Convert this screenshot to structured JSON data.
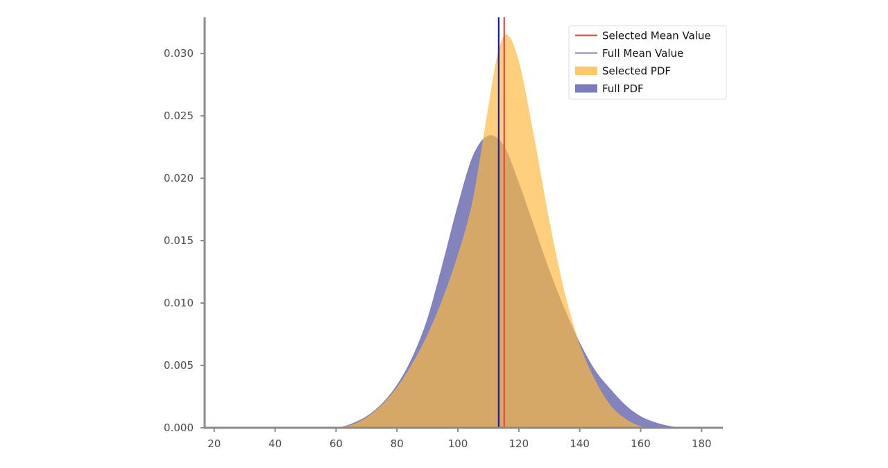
{
  "chart_data": {
    "type": "area",
    "title": "",
    "xlabel": "",
    "ylabel": "",
    "xlim": [
      18,
      187
    ],
    "ylim": [
      0,
      0.0329
    ],
    "xticks": [
      20,
      40,
      60,
      80,
      100,
      120,
      140,
      160,
      180
    ],
    "yticks": [
      0.0,
      0.005,
      0.01,
      0.015,
      0.02,
      0.025,
      0.03
    ],
    "ytick_labels": [
      "0.000",
      "0.005",
      "0.010",
      "0.015",
      "0.020",
      "0.025",
      "0.030"
    ],
    "grid": false,
    "legend_position": "top-right",
    "series": [
      {
        "name": "Full PDF",
        "kind": "area",
        "color": "#5c5caa",
        "x": [
          61,
          65,
          70,
          75,
          80,
          85,
          90,
          95,
          100,
          105,
          110,
          115,
          120,
          125,
          130,
          135,
          140,
          145,
          150,
          155,
          160,
          165,
          170,
          174
        ],
        "y": [
          0.0,
          0.0003,
          0.0009,
          0.0019,
          0.0034,
          0.0056,
          0.0087,
          0.0131,
          0.0178,
          0.0218,
          0.0234,
          0.0226,
          0.0196,
          0.0161,
          0.0126,
          0.0095,
          0.0068,
          0.0046,
          0.0031,
          0.0018,
          0.0009,
          0.0004,
          0.0001,
          0.0
        ]
      },
      {
        "name": "Selected PDF",
        "kind": "area",
        "color": "#fdb940",
        "x": [
          60,
          65,
          70,
          75,
          80,
          85,
          90,
          95,
          100,
          105,
          110,
          113,
          116,
          120,
          125,
          130,
          135,
          140,
          145,
          150,
          155,
          160,
          165
        ],
        "y": [
          0.0,
          0.0002,
          0.0008,
          0.0018,
          0.0032,
          0.0051,
          0.0074,
          0.0103,
          0.0138,
          0.0183,
          0.0256,
          0.0298,
          0.0315,
          0.0293,
          0.0232,
          0.0165,
          0.0108,
          0.0066,
          0.0038,
          0.0018,
          0.0007,
          0.0001,
          0.0
        ]
      },
      {
        "name": "Full Mean Value",
        "kind": "vline",
        "color": "#1c1c8c",
        "x": 113.4
      },
      {
        "name": "Selected Mean Value",
        "kind": "vline",
        "color": "#e34a4a",
        "x": 115.2
      }
    ],
    "legend": [
      {
        "label": "Selected Mean Value",
        "kind": "line",
        "color": "#e0535b"
      },
      {
        "label": "Full Mean Value",
        "kind": "line",
        "color": "#9b9bcc"
      },
      {
        "label": "Selected PDF",
        "kind": "patch",
        "color": "#fec86a"
      },
      {
        "label": "Full PDF",
        "kind": "patch",
        "color": "#7c7cbd"
      }
    ]
  }
}
